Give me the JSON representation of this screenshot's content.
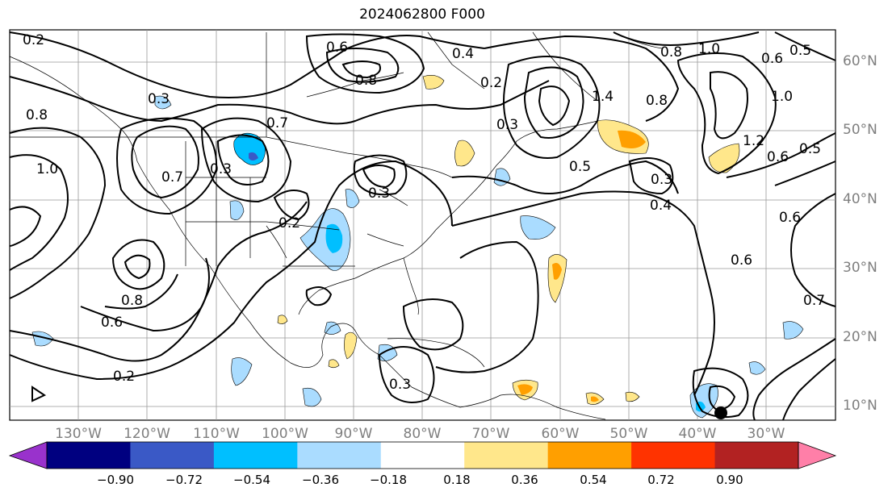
{
  "title": "2024062800 F000",
  "latitude_labels": [
    "60°N",
    "50°N",
    "40°N",
    "30°N",
    "20°N",
    "10°N"
  ],
  "longitude_labels": [
    "130°W",
    "120°W",
    "110°W",
    "100°W",
    "90°W",
    "80°W",
    "70°W",
    "60°W",
    "50°W",
    "40°W",
    "30°W"
  ],
  "contour_labels": [
    "0.2",
    "0.6",
    "0.8",
    "0.4",
    "1.0",
    "0.6",
    "0.5",
    "0.3",
    "0.2",
    "0.8",
    "1.4",
    "0.8",
    "1.0",
    "1.2",
    "0.5",
    "0.7",
    "0.3",
    "0.3",
    "0.4",
    "0.2",
    "0.3",
    "0.7",
    "0.6",
    "0.6",
    "0.7",
    "0.8",
    "0.6",
    "0.2",
    "0.3",
    "0.6",
    "0.8",
    "1.0",
    "0.3",
    "0.5"
  ],
  "colorbar": {
    "ticks": [
      "−0.90",
      "−0.72",
      "−0.54",
      "−0.36",
      "−0.18",
      "0.18",
      "0.36",
      "0.54",
      "0.72",
      "0.90"
    ],
    "colors": [
      "#9932cc",
      "#000080",
      "#3a59c6",
      "#00bfff",
      "#aadcff",
      "#ffffff",
      "#ffe78b",
      "#ff9f00",
      "#ff3300",
      "#b22222",
      "#ff7fa8"
    ]
  }
}
